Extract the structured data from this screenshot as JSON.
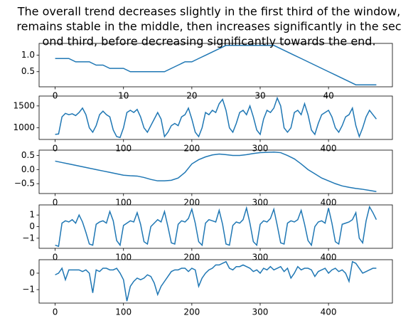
{
  "chart_data": [
    {
      "type": "line",
      "color": "#1f77b4",
      "title": [
        "The overall trend decreases slightly in the first third of the window,",
        " remains stable in the middle, then increases significantly in the sec",
        "ond third, before decreasing significantly towards the end."
      ],
      "x": [
        0,
        1,
        2,
        3,
        4,
        5,
        6,
        7,
        8,
        9,
        10,
        11,
        12,
        13,
        14,
        15,
        16,
        17,
        18,
        19,
        20,
        21,
        22,
        23,
        24,
        25,
        26,
        27,
        28,
        29,
        30,
        31,
        32,
        33,
        34,
        35,
        36,
        37,
        38,
        39,
        40,
        41,
        42,
        43,
        44,
        45,
        46,
        47
      ],
      "values": [
        0.9,
        0.9,
        0.9,
        0.8,
        0.8,
        0.8,
        0.7,
        0.7,
        0.6,
        0.6,
        0.6,
        0.5,
        0.5,
        0.5,
        0.5,
        0.5,
        0.5,
        0.6,
        0.7,
        0.8,
        0.8,
        0.9,
        1.0,
        1.1,
        1.2,
        1.3,
        1.3,
        1.3,
        1.3,
        1.3,
        1.3,
        1.3,
        1.3,
        1.2,
        1.1,
        1.0,
        0.9,
        0.8,
        0.7,
        0.6,
        0.5,
        0.4,
        0.3,
        0.2,
        0.1,
        0.1,
        0.1,
        0.1
      ],
      "xlim": [
        -2.35,
        49.35
      ],
      "xticks": [
        0,
        10,
        20,
        30,
        40
      ],
      "ylim": [
        0.04,
        1.36
      ],
      "yticks": [
        0.5,
        {
          "value": 1.0,
          "label": "1.0"
        }
      ]
    },
    {
      "type": "line",
      "color": "#1f77b4",
      "x": [
        0,
        5,
        10,
        15,
        20,
        25,
        30,
        35,
        40,
        45,
        50,
        55,
        60,
        65,
        70,
        75,
        80,
        85,
        90,
        95,
        100,
        105,
        110,
        115,
        120,
        125,
        130,
        135,
        140,
        145,
        150,
        155,
        160,
        165,
        170,
        175,
        180,
        185,
        190,
        195,
        200,
        205,
        210,
        215,
        220,
        225,
        230,
        235,
        240,
        245,
        250,
        255,
        260,
        265,
        270,
        275,
        280,
        285,
        290,
        295,
        300,
        305,
        310,
        315,
        320,
        325,
        330,
        335,
        340,
        345,
        350,
        355,
        360,
        365,
        370,
        375,
        380,
        385,
        390,
        395,
        400,
        405,
        410,
        415,
        420,
        425,
        430,
        435,
        440,
        445,
        450,
        455,
        460,
        465,
        470
      ],
      "values": [
        850,
        860,
        1250,
        1330,
        1300,
        1320,
        1280,
        1350,
        1450,
        1300,
        1000,
        900,
        1050,
        1300,
        1380,
        1300,
        1250,
        950,
        800,
        780,
        1000,
        1350,
        1400,
        1350,
        1420,
        1250,
        1000,
        900,
        1050,
        1200,
        1350,
        1200,
        800,
        900,
        1050,
        1100,
        1050,
        1250,
        1300,
        1450,
        1200,
        900,
        800,
        1000,
        1350,
        1300,
        1400,
        1350,
        1550,
        1650,
        1400,
        1000,
        900,
        1100,
        1350,
        1400,
        1300,
        1500,
        1250,
        950,
        850,
        1200,
        1400,
        1350,
        1450,
        1680,
        1500,
        1000,
        900,
        1000,
        1350,
        1400,
        1300,
        1550,
        1300,
        950,
        850,
        1100,
        1300,
        1350,
        1400,
        1250,
        1000,
        900,
        1050,
        1250,
        1300,
        1450,
        1050,
        800,
        1000,
        1250,
        1400,
        1300,
        1200
      ],
      "xlim": [
        -23.5,
        493.5
      ],
      "xticks": [
        0,
        100,
        200,
        300,
        400
      ],
      "ylim": [
        735,
        1725
      ],
      "yticks": [
        1000,
        1500
      ]
    },
    {
      "type": "line",
      "color": "#1f77b4",
      "x": [
        0,
        10,
        20,
        30,
        40,
        50,
        60,
        70,
        80,
        90,
        100,
        110,
        120,
        130,
        140,
        150,
        160,
        170,
        180,
        190,
        200,
        210,
        220,
        230,
        240,
        250,
        260,
        270,
        280,
        290,
        300,
        310,
        320,
        330,
        340,
        350,
        360,
        370,
        380,
        390,
        400,
        410,
        420,
        430,
        440,
        450,
        460,
        470
      ],
      "values": [
        0.3,
        0.25,
        0.2,
        0.15,
        0.1,
        0.05,
        0.0,
        -0.05,
        -0.1,
        -0.15,
        -0.2,
        -0.22,
        -0.23,
        -0.28,
        -0.35,
        -0.4,
        -0.4,
        -0.38,
        -0.3,
        -0.1,
        0.2,
        0.35,
        0.45,
        0.52,
        0.55,
        0.53,
        0.5,
        0.5,
        0.53,
        0.57,
        0.6,
        0.61,
        0.62,
        0.6,
        0.5,
        0.38,
        0.2,
        0.0,
        -0.15,
        -0.3,
        -0.4,
        -0.5,
        -0.58,
        -0.63,
        -0.67,
        -0.7,
        -0.74,
        -0.78
      ],
      "xlim": [
        -23.5,
        493.5
      ],
      "xticks": [
        0,
        100,
        200,
        300,
        400
      ],
      "ylim": [
        -0.85,
        0.69
      ],
      "yticks": [
        {
          "value": -0.5,
          "label": "−0.5"
        },
        {
          "value": 0,
          "label": "0.0"
        },
        0.5
      ]
    },
    {
      "type": "line",
      "color": "#1f77b4",
      "x": [
        0,
        5,
        10,
        15,
        20,
        25,
        30,
        35,
        40,
        45,
        50,
        55,
        60,
        65,
        70,
        75,
        80,
        85,
        90,
        95,
        100,
        105,
        110,
        115,
        120,
        125,
        130,
        135,
        140,
        145,
        150,
        155,
        160,
        165,
        170,
        175,
        180,
        185,
        190,
        195,
        200,
        205,
        210,
        215,
        220,
        225,
        230,
        235,
        240,
        245,
        250,
        255,
        260,
        265,
        270,
        275,
        280,
        285,
        290,
        295,
        300,
        305,
        310,
        315,
        320,
        325,
        330,
        335,
        340,
        345,
        350,
        355,
        360,
        365,
        370,
        375,
        380,
        385,
        390,
        395,
        400,
        405,
        410,
        415,
        420,
        425,
        430,
        435,
        440,
        445,
        450,
        455,
        460,
        465,
        470
      ],
      "values": [
        -1.6,
        -1.7,
        0.3,
        0.5,
        0.4,
        0.6,
        0.3,
        1.0,
        0.4,
        -0.5,
        -1.5,
        -1.6,
        0.2,
        0.4,
        0.5,
        0.3,
        1.3,
        0.5,
        -1.2,
        -1.6,
        0.1,
        0.3,
        0.5,
        0.4,
        1.2,
        0.2,
        -1.3,
        -1.5,
        0.0,
        0.3,
        0.6,
        0.4,
        1.3,
        0.0,
        -1.4,
        -1.5,
        0.2,
        0.5,
        0.4,
        0.7,
        1.5,
        0.3,
        -1.3,
        -1.6,
        0.3,
        0.6,
        0.5,
        0.4,
        1.4,
        0.2,
        -1.5,
        -1.6,
        0.1,
        0.4,
        0.3,
        0.6,
        1.6,
        0.3,
        -1.3,
        -1.6,
        0.2,
        0.5,
        0.4,
        0.7,
        1.5,
        0.1,
        -1.4,
        -1.5,
        0.3,
        0.5,
        0.4,
        0.6,
        1.4,
        0.2,
        -1.2,
        -1.6,
        0.0,
        0.4,
        0.5,
        0.3,
        1.6,
        0.3,
        -1.3,
        -1.5,
        0.2,
        0.3,
        0.4,
        0.6,
        1.2,
        -1.0,
        -1.4,
        0.5,
        1.7,
        1.2,
        0.6
      ],
      "xlim": [
        -23.5,
        493.5
      ],
      "xticks": [
        0,
        100,
        200,
        300,
        400
      ],
      "ylim": [
        -1.87,
        1.87
      ],
      "yticks": [
        {
          "value": -1,
          "label": "−1"
        },
        0,
        1
      ]
    },
    {
      "type": "line",
      "color": "#1f77b4",
      "x": [
        0,
        5,
        10,
        15,
        20,
        25,
        30,
        35,
        40,
        45,
        50,
        55,
        60,
        65,
        70,
        75,
        80,
        85,
        90,
        95,
        100,
        105,
        110,
        115,
        120,
        125,
        130,
        135,
        140,
        145,
        150,
        155,
        160,
        165,
        170,
        175,
        180,
        185,
        190,
        195,
        200,
        205,
        210,
        215,
        220,
        225,
        230,
        235,
        240,
        245,
        250,
        255,
        260,
        265,
        270,
        275,
        280,
        285,
        290,
        295,
        300,
        305,
        310,
        315,
        320,
        325,
        330,
        335,
        340,
        345,
        350,
        355,
        360,
        365,
        370,
        375,
        380,
        385,
        390,
        395,
        400,
        405,
        410,
        415,
        420,
        425,
        430,
        435,
        440,
        445,
        450,
        455,
        460,
        465,
        470
      ],
      "values": [
        -0.1,
        0.0,
        0.3,
        -0.4,
        0.2,
        0.2,
        0.2,
        0.2,
        0.1,
        0.2,
        0.0,
        -1.2,
        0.2,
        0.1,
        0.3,
        0.3,
        0.2,
        0.2,
        0.3,
        0.0,
        -0.4,
        -1.7,
        -0.8,
        -0.5,
        -0.3,
        -0.4,
        -0.3,
        -0.1,
        -0.2,
        -0.6,
        -1.3,
        -0.8,
        -0.5,
        -0.2,
        0.1,
        0.2,
        0.2,
        0.3,
        0.3,
        0.1,
        0.3,
        0.2,
        -0.8,
        -0.3,
        0.0,
        0.2,
        0.3,
        0.5,
        0.5,
        0.6,
        0.7,
        0.3,
        0.2,
        0.4,
        0.4,
        0.5,
        0.4,
        0.3,
        0.1,
        0.2,
        0.0,
        0.3,
        0.2,
        0.4,
        0.2,
        0.3,
        0.4,
        0.1,
        0.3,
        -0.3,
        0.0,
        0.4,
        0.2,
        0.3,
        0.3,
        0.2,
        -0.2,
        0.1,
        0.2,
        0.3,
        0.0,
        0.2,
        0.3,
        0.1,
        0.2,
        0.0,
        -0.5,
        0.7,
        0.6,
        0.3,
        0.0,
        0.1,
        0.2,
        0.3,
        0.3
      ],
      "xlim": [
        -23.5,
        493.5
      ],
      "xticks": [
        0,
        100,
        200,
        300,
        400
      ],
      "ylim": [
        -1.82,
        0.82
      ],
      "yticks": [
        {
          "value": -1,
          "label": "−1"
        },
        0
      ]
    }
  ]
}
